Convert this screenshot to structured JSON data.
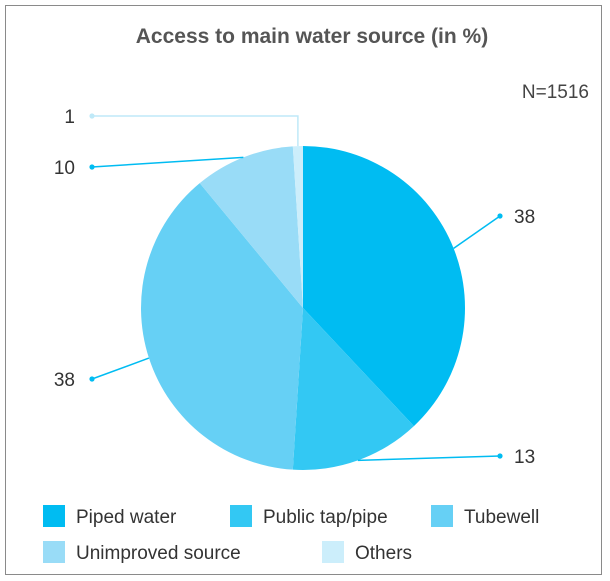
{
  "chart_data": {
    "type": "pie",
    "title": "Access to main water source (in %)",
    "note": "N=1516",
    "categories": [
      "Piped water",
      "Public tap/pipe",
      "Tubewell",
      "Unimproved source",
      "Others"
    ],
    "values": [
      38,
      13,
      38,
      10,
      1
    ],
    "colors": [
      "#00bcf2",
      "#33c8f3",
      "#66d0f5",
      "#99dcf7",
      "#cceefb"
    ],
    "legend_position": "bottom",
    "data_labels": [
      "38",
      "13",
      "38",
      "10",
      "1"
    ]
  },
  "colors": {
    "frame_border": "#8a8a8a",
    "leader_line": "#00bcf2"
  }
}
